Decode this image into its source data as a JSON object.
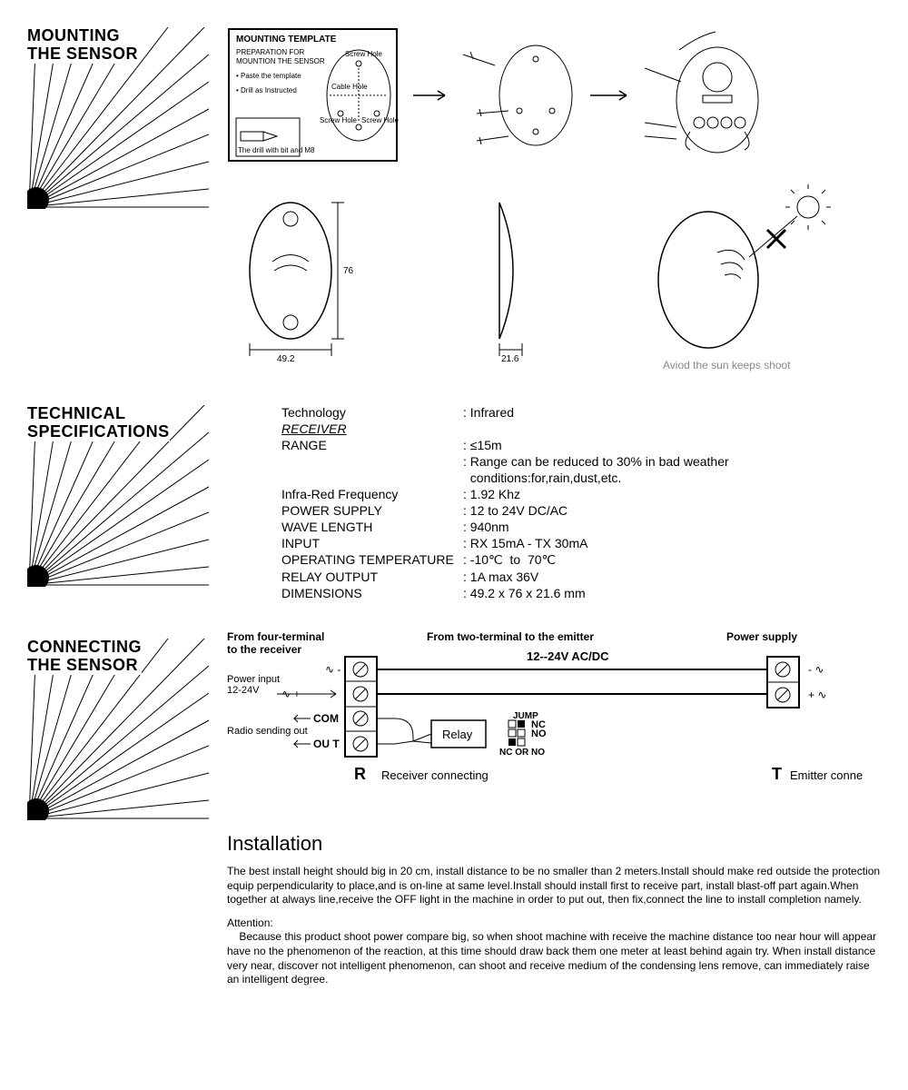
{
  "mounting": {
    "title": "MOUNTING\nTHE SENSOR",
    "template": {
      "heading": "MOUNTING TEMPLATE",
      "sub": "PREPARATION FOR MOUNTION THE SENSOR",
      "step1": "• Paste the template",
      "step2": "• Drill as Instructed",
      "drillNote": "The drill with bit and M8"
    },
    "diagramLabels": {
      "screwHole1": "Screw Hole",
      "cableHole": "Cable Hole",
      "screwHole2": "Screw Hole",
      "screwHole3": "Screw Hole"
    },
    "dims": {
      "width": "49.2",
      "height": "76",
      "depth": "21.6"
    },
    "sunNote": "Aviod the sun keeps shoot"
  },
  "specs": {
    "title": "TECHNICAL\nSPECIFICATIONS",
    "rows": [
      {
        "label": "Technology",
        "value": ": Infrared"
      },
      {
        "label": "RECEIVER",
        "value": "",
        "italic": true,
        "underline": true
      },
      {
        "label": "RANGE",
        "value": ": ≤15m"
      },
      {
        "label": "",
        "value": ": Range can be reduced to 30% in bad weather"
      },
      {
        "label": "",
        "value": "  conditions:for,rain,dust,etc."
      },
      {
        "label": "Infra-Red Frequency",
        "value": ": 1.92 Khz"
      },
      {
        "label": "POWER SUPPLY",
        "value": ": 12 to 24V DC/AC"
      },
      {
        "label": "WAVE LENGTH",
        "value": ": 940nm"
      },
      {
        "label": "INPUT",
        "value": ": RX 15mA - TX 30mA"
      },
      {
        "label": "OPERATING TEMPERATURE",
        "value": ": -10℃  to  70℃"
      },
      {
        "label": "RELAY OUTPUT",
        "value": ": 1A max 36V"
      },
      {
        "label": "DIMENSIONS",
        "value": ": 49.2 x 76 x 21.6 mm"
      }
    ]
  },
  "connecting": {
    "title": "CONNECTING\nTHE SENSOR",
    "fourTerm": "From four-terminal to the receiver",
    "twoTerm": "From two-terminal to the emitter",
    "powerSupply": "Power supply",
    "voltage": "12--24V AC/DC",
    "powerInput": "Power input\n12-24V",
    "radio": "Radio sending out",
    "com": "COM",
    "out": "OU T",
    "relay": "Relay",
    "jump": "JUMP",
    "nc": "NC",
    "no": "NO",
    "ncorno": "NC OR NO",
    "r": "R",
    "rDesc": "Receiver connecting",
    "t": "T",
    "tDesc": "Emitter connecting",
    "installTitle": "Installation",
    "installText": "The best install height should big in 20 cm, install distance to be no smaller than 2 meters.Install should make red outside the protection equip perpendicularity to place,and is on-line at same level.Install should install first to receive part, install blast-off part again.When together at always line,receive the OFF light in the machine in order   to put out, then fix,connect the line to install completion namely.",
    "attention": "Attention:",
    "attentionText": "Because this product shoot power compare big, so when shoot machine with receive the   machine distance too near hour will appear have no the phenomenon of the reaction,   at this   time should draw back them one meter at least behind again try.   When install distance very near, discover not intelligent phenomenon, can shoot and   receive medium of the condensing lens remove, can immediately raise an intelligent degree."
  },
  "colors": {
    "stroke": "#000000"
  }
}
